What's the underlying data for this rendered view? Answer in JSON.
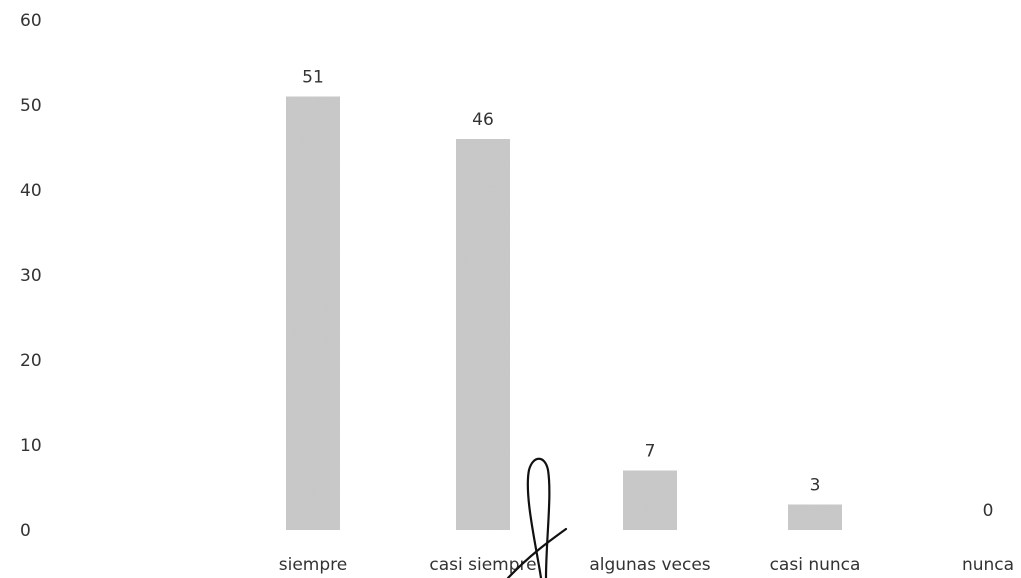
{
  "chart_data": {
    "type": "bar",
    "categories": [
      "siempre",
      "casi siempre",
      "algunas veces",
      "casi nunca",
      "nunca"
    ],
    "values": [
      51,
      46,
      7,
      3,
      0
    ],
    "data_labels": [
      "51",
      "46",
      "7",
      "3",
      "0"
    ],
    "title": "",
    "xlabel": "",
    "ylabel": "",
    "ylim": [
      0,
      60
    ],
    "yticks": [
      "0",
      "10",
      "20",
      "30",
      "40",
      "50",
      "60"
    ],
    "grid": false,
    "legend": "none",
    "bar_color": "#c9c9c9",
    "text_color": "#333333",
    "annotation_color": "#111111"
  }
}
